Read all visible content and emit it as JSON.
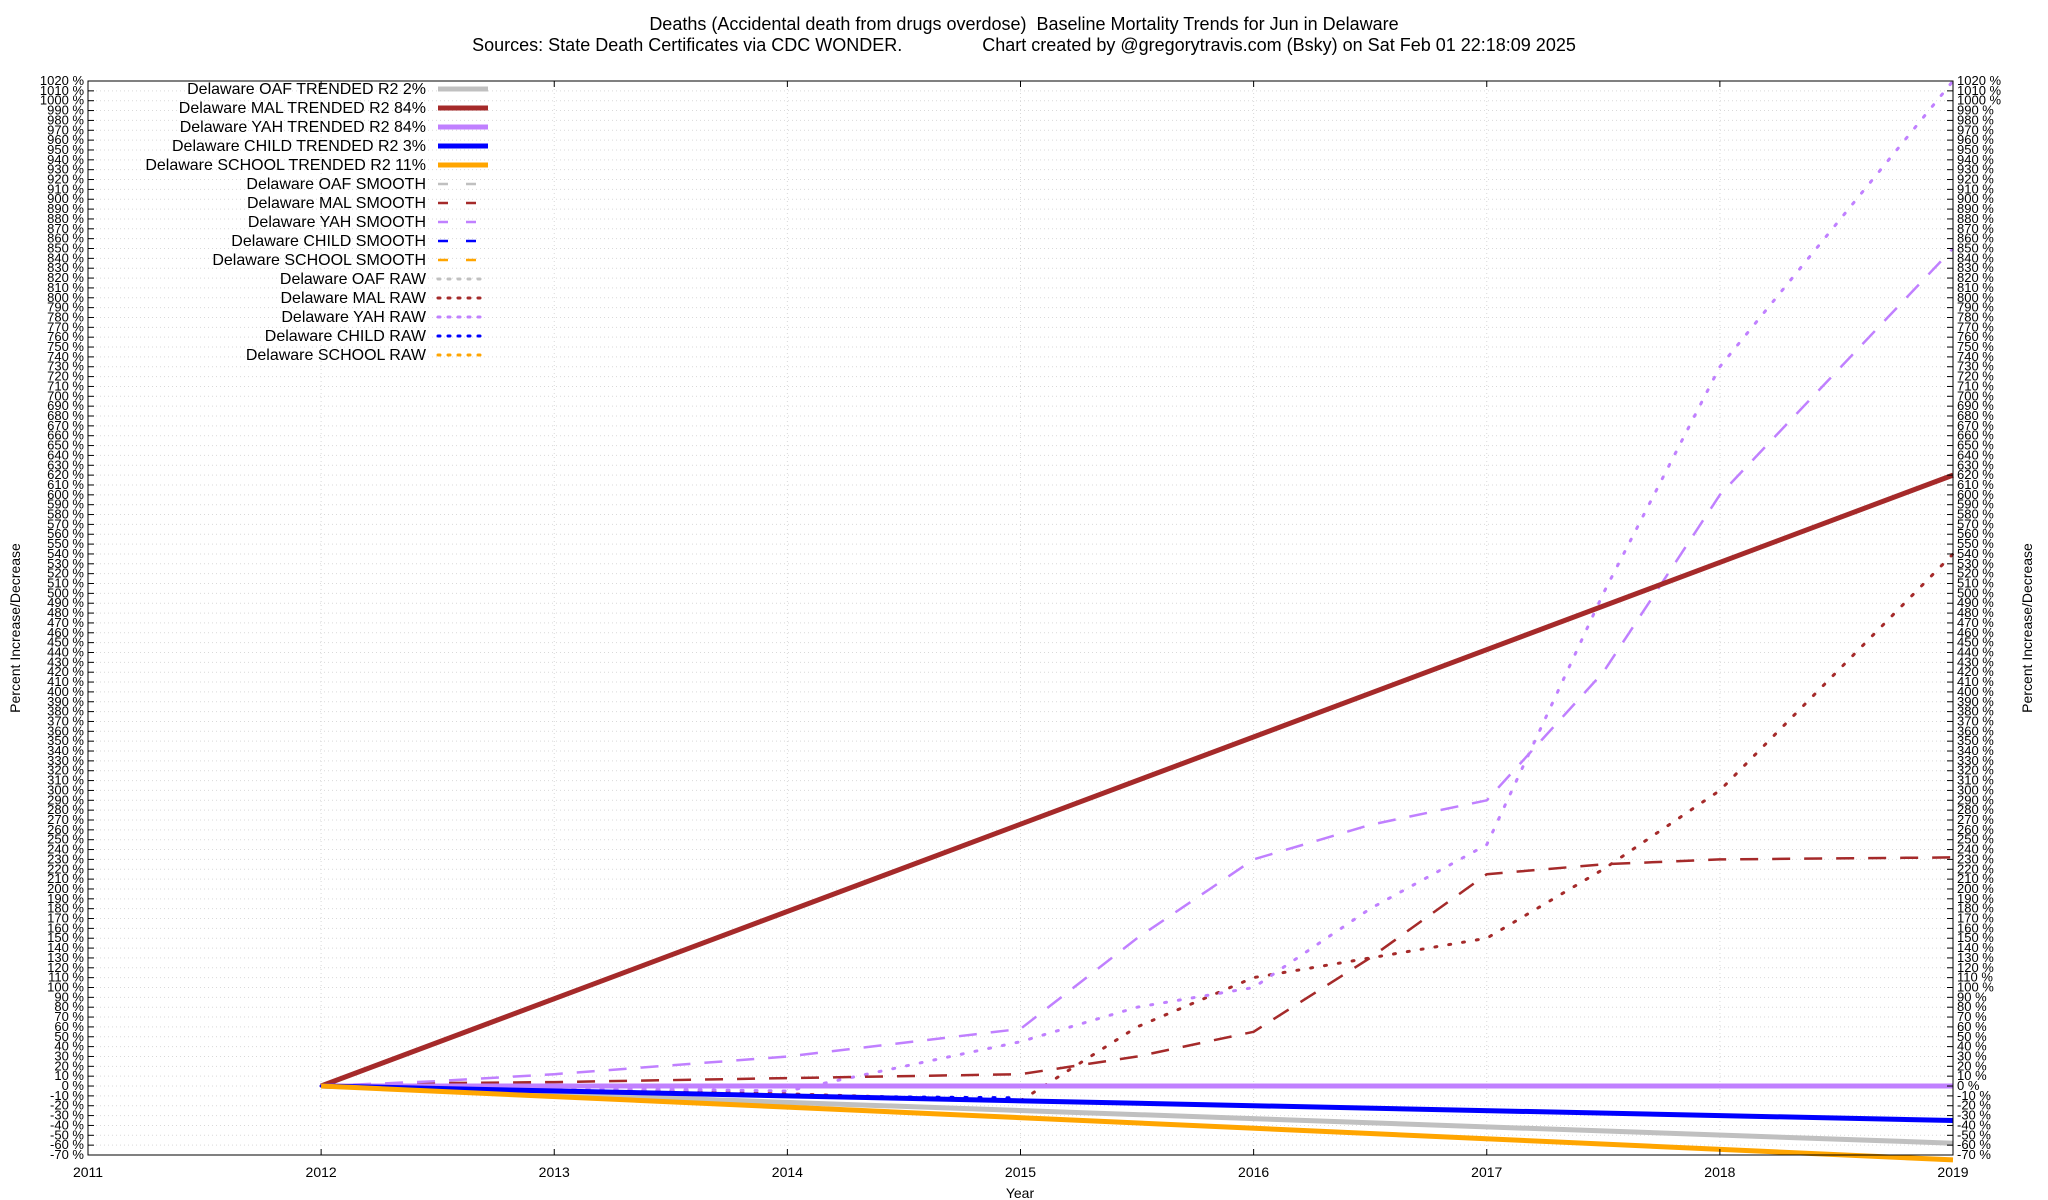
{
  "title": "Deaths (Accidental death from drugs overdose)  Baseline Mortality Trends for Jun in Delaware",
  "subtitle": "Sources: State Death Certificates via CDC WONDER.                Chart created by @gregorytravis.com (Bsky) on Sat Feb 01 22:18:09 2025",
  "chart_data": {
    "type": "line",
    "xlabel": "Year",
    "ylabel": "Percent Increase/Decrease",
    "y2label": "Percent Increase/Decrease",
    "xlim": [
      2011,
      2019
    ],
    "ylim": [
      -70,
      1020
    ],
    "y_tick_step": 10,
    "y_tick_suffix": " %",
    "x_ticks": [
      "2011",
      "2012",
      "2013",
      "2014",
      "2015",
      "2016",
      "2017",
      "2018",
      "2019"
    ],
    "grid": true,
    "legend_position": "top-left",
    "series": [
      {
        "name": "Delaware OAF TRENDED R2  2%",
        "style": "trend",
        "color": "#c0c0c0",
        "x": [
          2012,
          2019
        ],
        "y": [
          0,
          -58
        ]
      },
      {
        "name": "Delaware MAL TRENDED R2  84%",
        "style": "trend",
        "color": "#a52a2a",
        "x": [
          2012,
          2019
        ],
        "y": [
          0,
          620
        ]
      },
      {
        "name": "Delaware YAH TRENDED R2  84%",
        "style": "trend",
        "color": "#c080ff",
        "x": [
          2012,
          2019
        ],
        "y": [
          0,
          0
        ]
      },
      {
        "name": "Delaware CHILD TRENDED R2  3%",
        "style": "trend",
        "color": "#0000ff",
        "x": [
          2012,
          2019
        ],
        "y": [
          0,
          -35
        ]
      },
      {
        "name": "Delaware SCHOOL TRENDED R2  11%",
        "style": "trend",
        "color": "#ffa500",
        "x": [
          2012,
          2019
        ],
        "y": [
          0,
          -75
        ]
      },
      {
        "name": "Delaware OAF SMOOTH",
        "style": "smooth",
        "color": "#c0c0c0",
        "x": [],
        "y": []
      },
      {
        "name": "Delaware MAL SMOOTH",
        "style": "smooth",
        "color": "#a52a2a",
        "x": [
          2012,
          2012.5,
          2013,
          2014,
          2015,
          2015.5,
          2016,
          2016.5,
          2017,
          2017.5,
          2018,
          2019
        ],
        "y": [
          0,
          3,
          4,
          8,
          12,
          30,
          55,
          130,
          215,
          225,
          230,
          232
        ]
      },
      {
        "name": "Delaware YAH SMOOTH",
        "style": "smooth",
        "color": "#c080ff",
        "x": [
          2012,
          2012.5,
          2013,
          2014,
          2015,
          2015.5,
          2016,
          2016.5,
          2017,
          2017.5,
          2018,
          2019
        ],
        "y": [
          0,
          5,
          12,
          30,
          58,
          150,
          230,
          265,
          290,
          420,
          600,
          850
        ]
      },
      {
        "name": "Delaware CHILD SMOOTH",
        "style": "smooth",
        "color": "#0000ff",
        "x": [],
        "y": []
      },
      {
        "name": "Delaware SCHOOL SMOOTH",
        "style": "smooth",
        "color": "#ffa500",
        "x": [],
        "y": []
      },
      {
        "name": "Delaware OAF RAW",
        "style": "raw",
        "color": "#c0c0c0",
        "x": [],
        "y": []
      },
      {
        "name": "Delaware MAL RAW",
        "style": "raw",
        "color": "#a52a2a",
        "x": [
          2012,
          2013,
          2014,
          2015,
          2015.5,
          2016,
          2016.5,
          2017,
          2017.5,
          2018,
          2019
        ],
        "y": [
          0,
          -2,
          -8,
          -15,
          60,
          110,
          130,
          150,
          220,
          300,
          540
        ]
      },
      {
        "name": "Delaware YAH RAW",
        "style": "raw",
        "color": "#c080ff",
        "x": [
          2012,
          2013,
          2014,
          2015,
          2015.5,
          2016,
          2016.5,
          2017,
          2017.5,
          2018,
          2019
        ],
        "y": [
          0,
          -2,
          -5,
          45,
          80,
          100,
          180,
          245,
          500,
          730,
          1020
        ]
      },
      {
        "name": "Delaware CHILD RAW",
        "style": "raw",
        "color": "#0000ff",
        "x": [
          2012,
          2013,
          2014,
          2015
        ],
        "y": [
          0,
          -5,
          -10,
          -12
        ]
      },
      {
        "name": "Delaware SCHOOL RAW",
        "style": "raw",
        "color": "#ffa500",
        "x": [],
        "y": []
      }
    ]
  }
}
